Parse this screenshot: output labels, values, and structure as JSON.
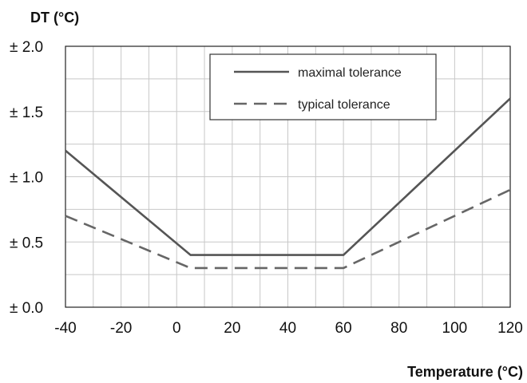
{
  "chart_data": {
    "type": "line",
    "ylabel": "DT (°C)",
    "xlabel": "Temperature (°C)",
    "xlim": [
      -40,
      120
    ],
    "ylim": [
      0,
      2
    ],
    "x_ticks": [
      -40,
      -20,
      0,
      20,
      40,
      60,
      80,
      100,
      120
    ],
    "y_ticks": [
      0.0,
      0.5,
      1.0,
      1.5,
      2.0
    ],
    "y_tick_labels": [
      "± 0.0",
      "± 0.5",
      "± 1.0",
      "± 1.5",
      "± 2.0"
    ],
    "grid": true,
    "legend_position": "top-center",
    "series": [
      {
        "name": "maximal tolerance",
        "style": "solid",
        "color": "#555555",
        "points": [
          [
            -40,
            1.2
          ],
          [
            5,
            0.4
          ],
          [
            60,
            0.4
          ],
          [
            120,
            1.6
          ]
        ]
      },
      {
        "name": "typical tolerance",
        "style": "dashed",
        "color": "#666666",
        "points": [
          [
            -40,
            0.7
          ],
          [
            5,
            0.3
          ],
          [
            60,
            0.3
          ],
          [
            120,
            0.9
          ]
        ]
      }
    ]
  }
}
